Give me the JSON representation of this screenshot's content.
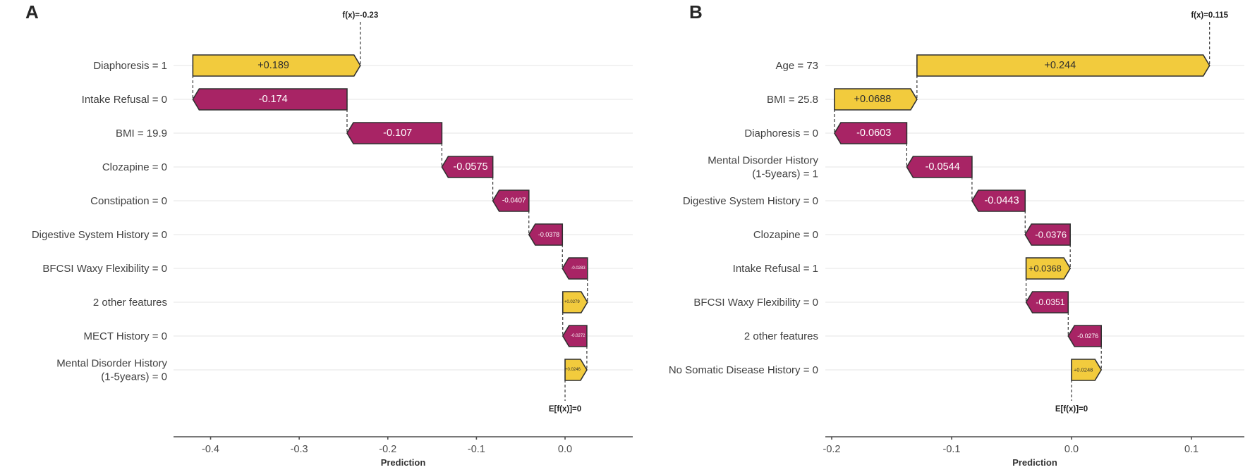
{
  "figure": {
    "background": "#ffffff",
    "colors": {
      "positive_bar": "#F2CB3D",
      "negative_bar": "#A82465",
      "bar_border": "#303030",
      "positive_text": "#2e2e2e",
      "negative_text": "#ffffff"
    }
  },
  "chart_data": [
    {
      "type": "waterfall",
      "panel": "A",
      "xlabel": "Prediction",
      "fx_label": "f(x)=-0.23",
      "efx_label": "E[f(x)]=0",
      "base_value": 0,
      "prediction": -0.23,
      "xlim": [
        -0.4418,
        0.0764
      ],
      "xtick_values": [
        -0.4,
        -0.3,
        -0.2,
        -0.1,
        0.0
      ],
      "xtick_labels": [
        "-0.4",
        "-0.3",
        "-0.2",
        "-0.1",
        "0.0"
      ],
      "grid": true,
      "features": [
        {
          "label": "Diaphoresis = 1",
          "value": 0.189,
          "display": "+0.189"
        },
        {
          "label": "Intake Refusal = 0",
          "value": -0.174,
          "display": "-0.174"
        },
        {
          "label": "BMI = 19.9",
          "value": -0.107,
          "display": "-0.107"
        },
        {
          "label": "Clozapine = 0",
          "value": -0.0575,
          "display": "-0.0575"
        },
        {
          "label": "Constipation = 0",
          "value": -0.0407,
          "display": "-0.0407"
        },
        {
          "label": "Digestive System History = 0",
          "value": -0.0378,
          "display": "-0.0378"
        },
        {
          "label": "BFCSI Waxy Flexibility = 0",
          "value": -0.0283,
          "display": "-0.0283"
        },
        {
          "label": "2 other features",
          "value": 0.0279,
          "display": "+0.0279"
        },
        {
          "label": "MECT History = 0",
          "value": -0.0272,
          "display": "-0.0272"
        },
        {
          "label": "Mental Disorder History (1-5years) = 0",
          "lines": [
            "Mental Disorder History",
            "(1-5years) = 0"
          ],
          "value": 0.0246,
          "display": "+0.0246"
        }
      ]
    },
    {
      "type": "waterfall",
      "panel": "B",
      "xlabel": "Prediction",
      "fx_label": "f(x)=0.115",
      "efx_label": "E[f(x)]=0",
      "base_value": 0,
      "prediction": 0.115,
      "xlim": [
        -0.2053,
        0.1441
      ],
      "xtick_values": [
        -0.2,
        -0.1,
        0.0,
        0.1
      ],
      "xtick_labels": [
        "-0.2",
        "-0.1",
        "0.0",
        "0.1"
      ],
      "grid": true,
      "features": [
        {
          "label": "Age = 73",
          "value": 0.244,
          "display": "+0.244"
        },
        {
          "label": "BMI = 25.8",
          "value": 0.0688,
          "display": "+0.0688"
        },
        {
          "label": "Diaphoresis = 0",
          "value": -0.0603,
          "display": "-0.0603"
        },
        {
          "label": "Mental Disorder History (1-5years) = 1",
          "lines": [
            "Mental Disorder History",
            "(1-5years) = 1"
          ],
          "value": -0.0544,
          "display": "-0.0544"
        },
        {
          "label": "Digestive System History = 0",
          "value": -0.0443,
          "display": "-0.0443"
        },
        {
          "label": "Clozapine = 0",
          "value": -0.0376,
          "display": "-0.0376"
        },
        {
          "label": "Intake Refusal = 1",
          "value": 0.0368,
          "display": "+0.0368"
        },
        {
          "label": "BFCSI Waxy Flexibility = 0",
          "value": -0.0351,
          "display": "-0.0351"
        },
        {
          "label": "2 other features",
          "value": -0.0276,
          "display": "-0.0276"
        },
        {
          "label": "No Somatic Disease History = 0",
          "value": 0.0248,
          "display": "+0.0248"
        }
      ]
    }
  ]
}
